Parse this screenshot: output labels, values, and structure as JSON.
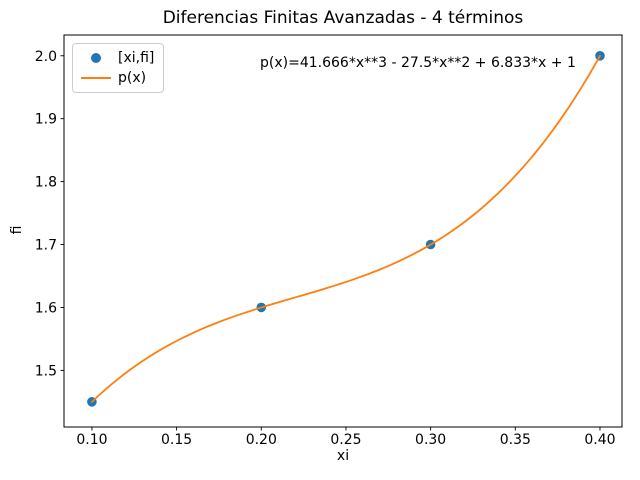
{
  "figure": {
    "background": "#ffffff"
  },
  "chart_data": {
    "type": "line",
    "title": "Diferencias Finitas Avanzadas - 4 términos",
    "xlabel": "xi",
    "ylabel": "fi",
    "annotation": "p(x)=41.666*x**3 - 27.5*x**2 + 6.833*x + 1",
    "series": [
      {
        "name": "[xi,fi]",
        "type": "scatter",
        "color": "#1f77b4",
        "x": [
          0.1,
          0.2,
          0.3,
          0.4
        ],
        "y": [
          1.45,
          1.6,
          1.7,
          2.0
        ]
      },
      {
        "name": "p(x)",
        "type": "line",
        "color": "#ff7f0e",
        "polynomial_coefficients": [
          41.666,
          -27.5,
          6.833,
          1
        ],
        "domain": [
          0.1,
          0.4
        ]
      }
    ],
    "xticks": [
      0.1,
      0.15,
      0.2,
      0.25,
      0.3,
      0.35,
      0.4
    ],
    "xtick_labels": [
      "0.10",
      "0.15",
      "0.20",
      "0.25",
      "0.30",
      "0.35",
      "0.40"
    ],
    "yticks": [
      1.5,
      1.6,
      1.7,
      1.8,
      1.9,
      2.0
    ],
    "ytick_labels": [
      "1.5",
      "1.6",
      "1.7",
      "1.8",
      "1.9",
      "2.0"
    ],
    "xlim": [
      0.0835,
      0.413
    ],
    "ylim": [
      1.41,
      2.033
    ],
    "grid": false,
    "legend": {
      "position": "upper left",
      "entries": [
        "[xi,fi]",
        "p(x)"
      ]
    }
  }
}
